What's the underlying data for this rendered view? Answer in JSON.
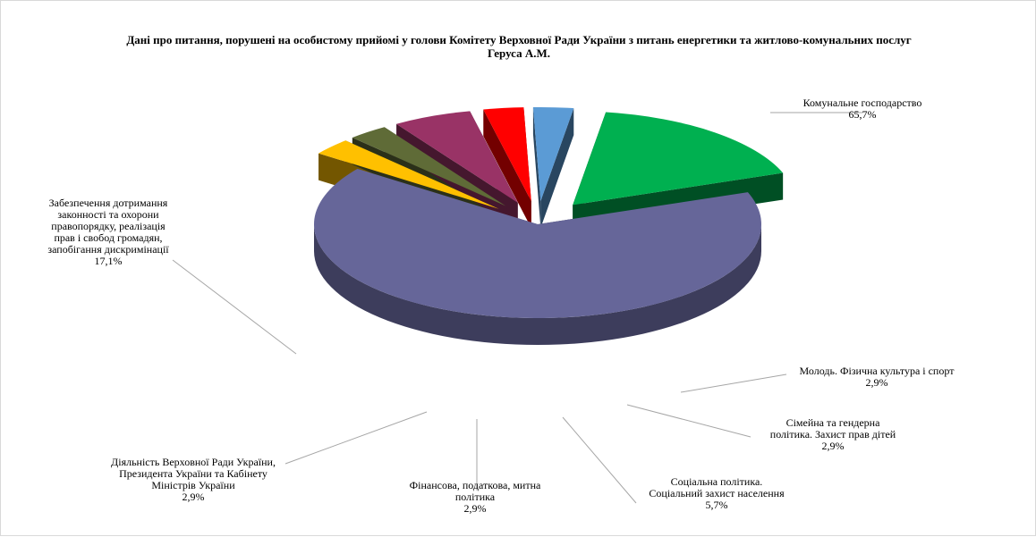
{
  "chart_data": {
    "type": "pie",
    "title_lines": [
      "Дані про питання, порушені на особистому прийомі у голови Комітету Верховної Ради України з питань енергетики та житлово-комунальних послуг",
      "Геруса А.М."
    ],
    "slices": [
      {
        "name": "Комунальне господарство",
        "value": 65.7,
        "value_label": "65,7%",
        "color": "#666699",
        "label_lines": [
          "Комунальне господарство"
        ]
      },
      {
        "name": "Молодь. Фізична культура і спорт",
        "value": 2.9,
        "value_label": "2,9%",
        "color": "#ffc000",
        "label_lines": [
          "Молодь. Фізична культура і спорт"
        ]
      },
      {
        "name": "Сімейна та гендерна політика. Захист прав дітей",
        "value": 2.9,
        "value_label": "2,9%",
        "color": "#5f6b37",
        "label_lines": [
          "Сімейна та гендерна",
          "політика. Захист прав дітей"
        ]
      },
      {
        "name": "Соціальна політика. Соціальний захист населення",
        "value": 5.7,
        "value_label": "5,7%",
        "color": "#993366",
        "label_lines": [
          "Соціальна політика.",
          "Соціальний захист населення"
        ]
      },
      {
        "name": "Фінансова, податкова, митна політика",
        "value": 2.9,
        "value_label": "2,9%",
        "color": "#ff0000",
        "label_lines": [
          "Фінансова, податкова, митна",
          "політика"
        ]
      },
      {
        "name": "Діяльність Верховної Ради України, Президента України та Кабінету Міністрів України",
        "value": 2.9,
        "value_label": "2,9%",
        "color": "#5b9bd5",
        "label_lines": [
          "Діяльність Верховної Ради України,",
          "Президента України та Кабінету",
          "Міністрів  України"
        ]
      },
      {
        "name": "Забезпечення дотримання законності та охорони правопорядку, реалізація прав і свобод громадян, запобігання дискримінації",
        "value": 17.1,
        "value_label": "17,1%",
        "color": "#00b050",
        "label_lines": [
          "Забезпечення дотримання",
          "законності та охорони",
          "правопорядку, реалізація",
          "прав і свобод громадян,",
          "запобігання дискримінації"
        ]
      }
    ],
    "legend": "none"
  }
}
